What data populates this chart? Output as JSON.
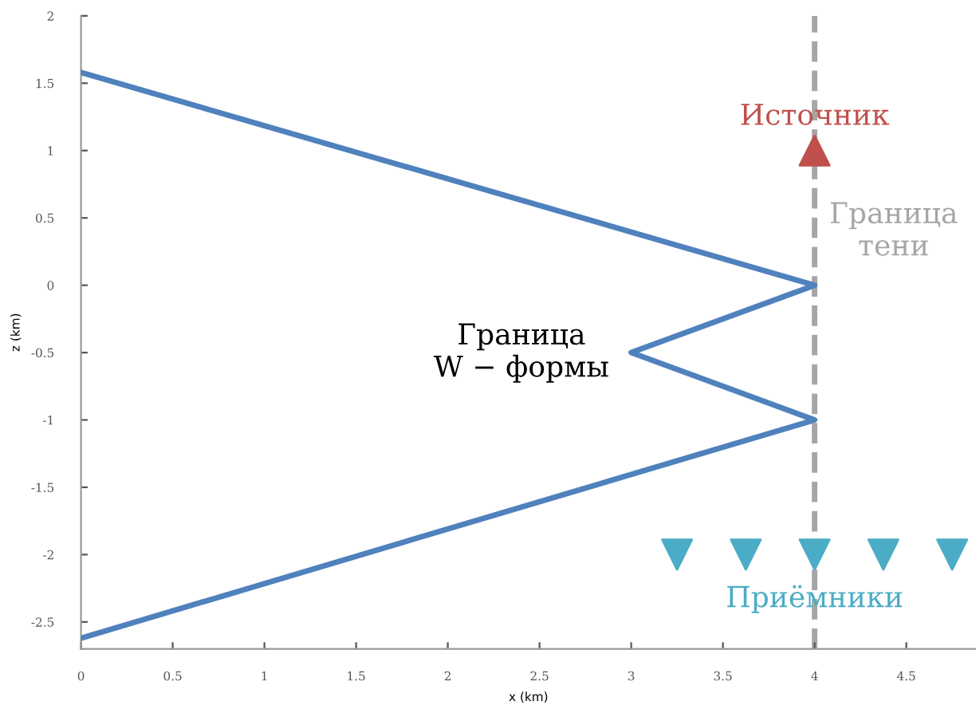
{
  "chart_data": {
    "type": "line",
    "xlabel": "x (km)",
    "ylabel": "z (km)",
    "xlim": [
      0,
      4.88
    ],
    "ylim": [
      -2.7,
      2
    ],
    "xticks": [
      0,
      0.5,
      1,
      1.5,
      2,
      2.5,
      3,
      3.5,
      4,
      4.5
    ],
    "yticks": [
      -2.5,
      -2,
      -1.5,
      -1,
      -0.5,
      0,
      0.5,
      1,
      1.5,
      2
    ],
    "grid": false,
    "legend": false,
    "series": [
      {
        "color": "#4f81bd",
        "x": [
          0,
          4,
          3,
          4,
          0
        ],
        "values": [
          1.58,
          0,
          -0.5,
          -1,
          -2.62
        ],
        "marker": "none"
      },
      {
        "type": "scatter",
        "name": "Источник",
        "color": "#c0504d",
        "x": [
          4
        ],
        "values": [
          1
        ],
        "marker": "triangle"
      },
      {
        "type": "scatter",
        "name": "Приёмники",
        "color": "#4bacc6",
        "x": [
          3.25,
          3.625,
          4,
          4.375,
          4.75
        ],
        "values": [
          -2,
          -2,
          -2,
          -2,
          -2
        ],
        "marker": "triangle_down"
      }
    ],
    "ref_lines": [
      {
        "axis": "x",
        "value": 4,
        "label": "Граница\nтени",
        "color": "#a6a6a6",
        "line_style": "dashed"
      }
    ],
    "annotations": [
      {
        "text": "Граница\nW − формы",
        "x": 3,
        "y": -0.5
      }
    ]
  }
}
